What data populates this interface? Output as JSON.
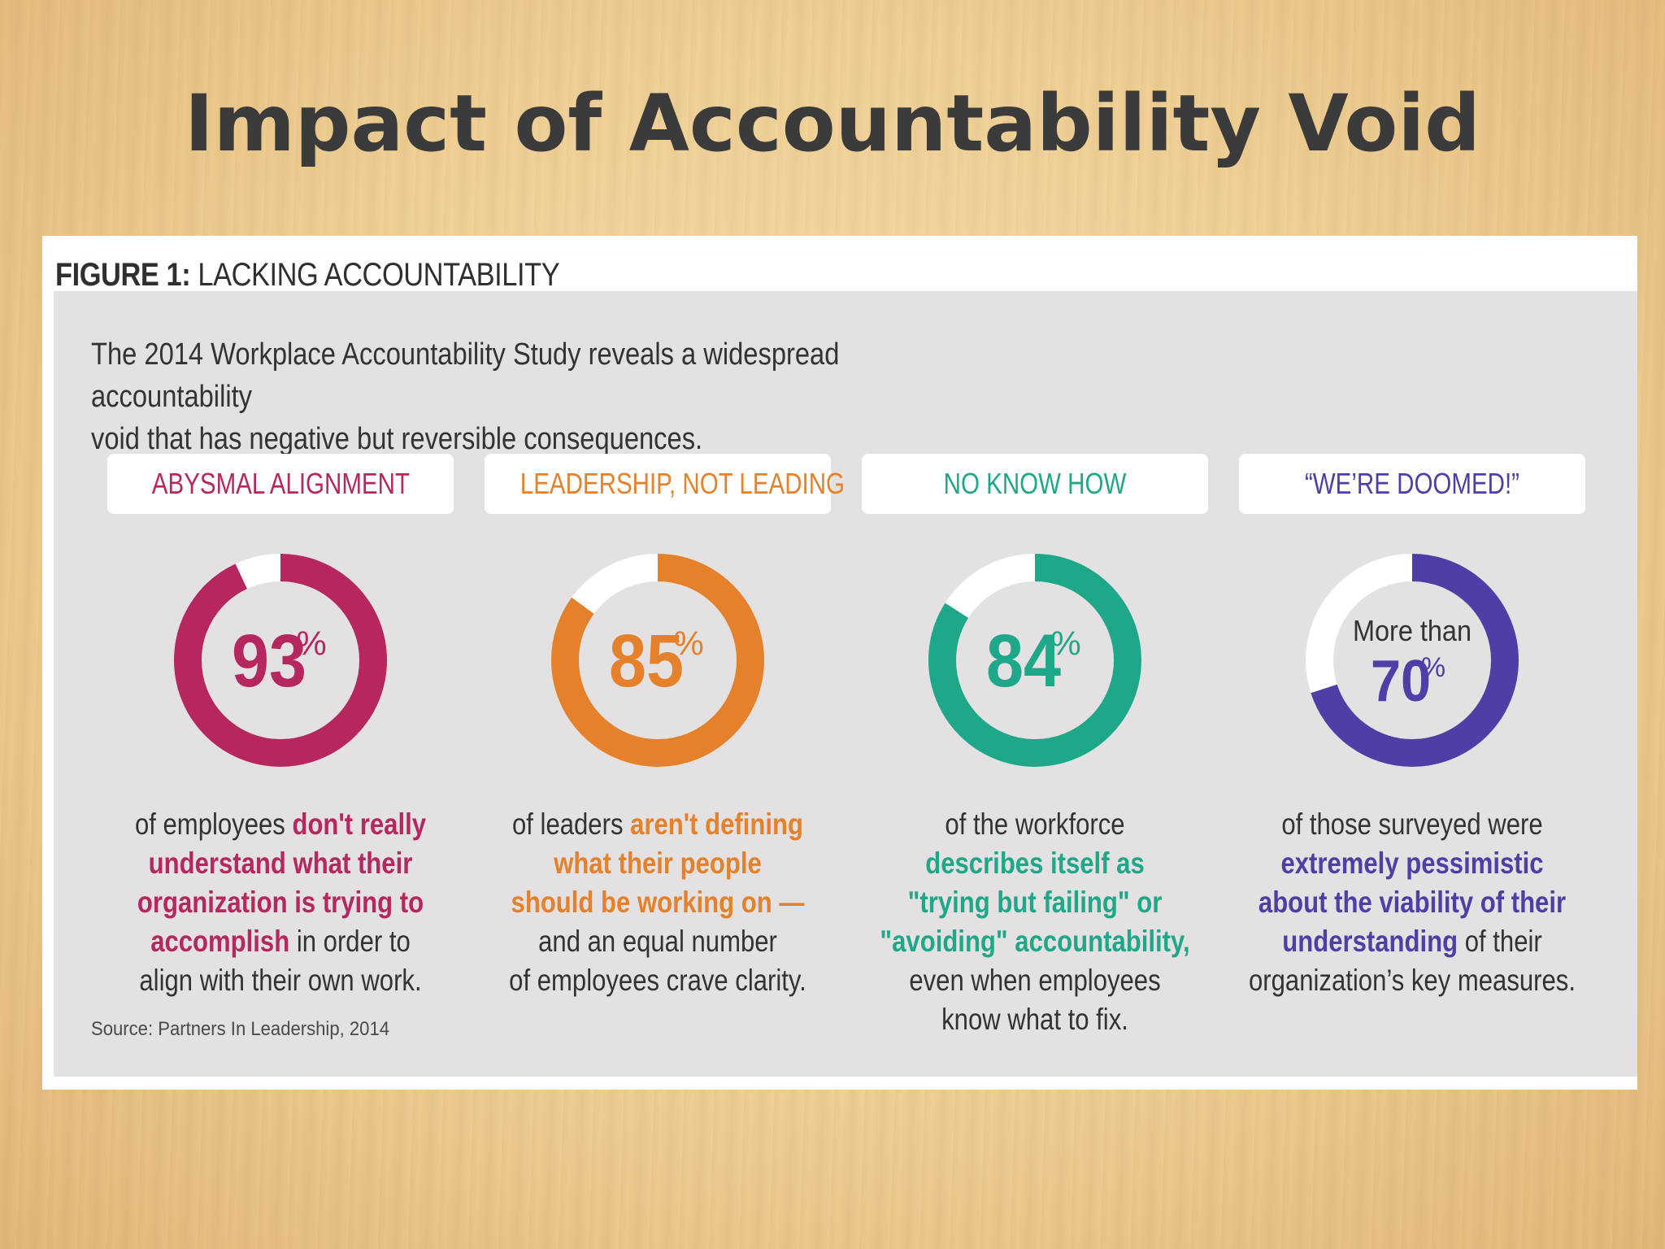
{
  "slide": {
    "title": "Impact of Accountability Void"
  },
  "figure": {
    "heading_bold": "FIGURE 1:",
    "heading_rest": " LACKING ACCOUNTABILITY",
    "intro_line1": "The 2014 Workplace Accountability Study reveals a widespread accountability",
    "intro_line2": "void that has negative but reversible consequences.",
    "source": "Source: Partners In Leadership, 2014"
  },
  "chart_data": [
    {
      "type": "pie",
      "title": "ABYSMAL ALIGNMENT",
      "value": 93,
      "value_label": "93",
      "unit": "%",
      "prefix": "",
      "color": "#b5275e",
      "description": {
        "lines": [
          [
            {
              "t": "of employees ",
              "h": false
            },
            {
              "t": "don't really",
              "h": true
            }
          ],
          [
            {
              "t": "understand what their",
              "h": true
            }
          ],
          [
            {
              "t": "organization is trying to",
              "h": true
            }
          ],
          [
            {
              "t": "accomplish",
              "h": true
            },
            {
              "t": " in order to",
              "h": false
            }
          ],
          [
            {
              "t": "align with their own work.",
              "h": false
            }
          ]
        ]
      }
    },
    {
      "type": "pie",
      "title": "LEADERSHIP, NOT LEADING",
      "value": 85,
      "value_label": "85",
      "unit": "%",
      "prefix": "",
      "color": "#e4812a",
      "description": {
        "lines": [
          [
            {
              "t": "of leaders ",
              "h": false
            },
            {
              "t": "aren't defining",
              "h": true
            }
          ],
          [
            {
              "t": "what their people",
              "h": true
            }
          ],
          [
            {
              "t": "should be working on —",
              "h": true
            }
          ],
          [
            {
              "t": "and an equal number",
              "h": false
            }
          ],
          [
            {
              "t": "of employees crave clarity.",
              "h": false
            }
          ]
        ]
      }
    },
    {
      "type": "pie",
      "title": "NO KNOW HOW",
      "value": 84,
      "value_label": "84",
      "unit": "%",
      "prefix": "",
      "color": "#1ea788",
      "description": {
        "lines": [
          [
            {
              "t": "of the workforce",
              "h": false
            }
          ],
          [
            {
              "t": "describes itself as",
              "h": true
            }
          ],
          [
            {
              "t": "\"trying but failing\" or",
              "h": true
            }
          ],
          [
            {
              "t": "\"avoiding\" accountability,",
              "h": true
            }
          ],
          [
            {
              "t": "even when employees",
              "h": false
            }
          ],
          [
            {
              "t": "know what to fix.",
              "h": false
            }
          ]
        ]
      }
    },
    {
      "type": "pie",
      "title": "“WE’RE DOOMED!”",
      "value": 70,
      "value_label": "70",
      "unit": "%",
      "prefix": "More than",
      "color": "#4f3ea6",
      "description": {
        "lines": [
          [
            {
              "t": "of those surveyed were",
              "h": false
            }
          ],
          [
            {
              "t": "extremely pessimistic",
              "h": true
            }
          ],
          [
            {
              "t": "about the viability of their",
              "h": true
            }
          ],
          [
            {
              "t": "understanding",
              "h": true
            },
            {
              "t": " of their",
              "h": false
            }
          ],
          [
            {
              "t": "organization’s key measures.",
              "h": false
            }
          ]
        ]
      }
    }
  ]
}
